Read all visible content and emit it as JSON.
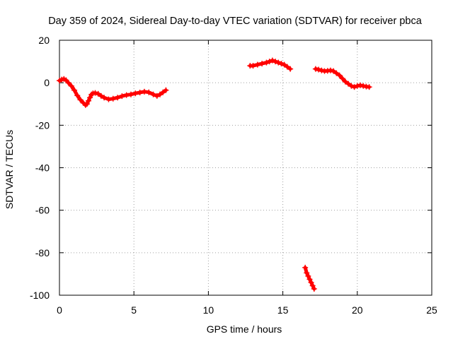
{
  "chart_data": {
    "type": "scatter",
    "title": "Day 359 of 2024, Sidereal Day-to-day VTEC variation (SDTVAR) for receiver pbca",
    "xlabel": "GPS time / hours",
    "ylabel": "SDTVAR / TECUs",
    "xlim": [
      0,
      25
    ],
    "ylim": [
      -100,
      20
    ],
    "x_ticks": [
      0,
      5,
      10,
      15,
      20,
      25
    ],
    "y_ticks": [
      -100,
      -80,
      -60,
      -40,
      -20,
      0,
      20
    ],
    "grid": true,
    "legend": "none",
    "marker_color": "#ff0000",
    "series": [
      {
        "name": "segment-1",
        "x": [
          0.0,
          0.15,
          0.3,
          0.45,
          0.6,
          0.8,
          1.0,
          1.2,
          1.4,
          1.6,
          1.75,
          1.85,
          1.95,
          2.05,
          2.15,
          2.25,
          2.4,
          2.6,
          2.8,
          3.0,
          3.3,
          3.6,
          3.9,
          4.2,
          4.5,
          4.8,
          5.1,
          5.4,
          5.7,
          6.0,
          6.3,
          6.55,
          6.75,
          6.95,
          7.15
        ],
        "y": [
          1,
          1.5,
          1.8,
          1.2,
          0,
          -1.5,
          -3.5,
          -6,
          -8,
          -9.5,
          -10.5,
          -10,
          -8.5,
          -7,
          -5.5,
          -5,
          -4.8,
          -5.2,
          -6.2,
          -7,
          -7.8,
          -7.5,
          -7,
          -6.3,
          -5.8,
          -5.5,
          -5,
          -4.6,
          -4.2,
          -4.5,
          -5.5,
          -6.2,
          -5.5,
          -4.5,
          -3.5
        ]
      },
      {
        "name": "segment-2",
        "x": [
          12.8,
          13.0,
          13.3,
          13.6,
          13.9,
          14.1,
          14.3,
          14.5,
          14.7,
          14.9,
          15.1,
          15.3,
          15.5
        ],
        "y": [
          8,
          8,
          8.5,
          9,
          9.5,
          10,
          10.5,
          10,
          9.5,
          9,
          8.5,
          7.5,
          6.5
        ]
      },
      {
        "name": "segment-3",
        "x": [
          16.5,
          16.6,
          16.7,
          16.8,
          16.9,
          17.0,
          17.1
        ],
        "y": [
          -87,
          -89.5,
          -91,
          -92.5,
          -94,
          -95.5,
          -97
        ]
      },
      {
        "name": "segment-4",
        "x": [
          17.2,
          17.4,
          17.6,
          17.8,
          18.0,
          18.2,
          18.4,
          18.6,
          18.8,
          19.0,
          19.2,
          19.4,
          19.6,
          19.8,
          20.0,
          20.2,
          20.4,
          20.6,
          20.8
        ],
        "y": [
          6.5,
          6.2,
          5.8,
          5.5,
          5.6,
          5.8,
          5.5,
          4.5,
          3.5,
          2,
          0.5,
          -0.5,
          -1.5,
          -2,
          -1.5,
          -1.2,
          -1.5,
          -1.8,
          -2
        ]
      }
    ]
  }
}
